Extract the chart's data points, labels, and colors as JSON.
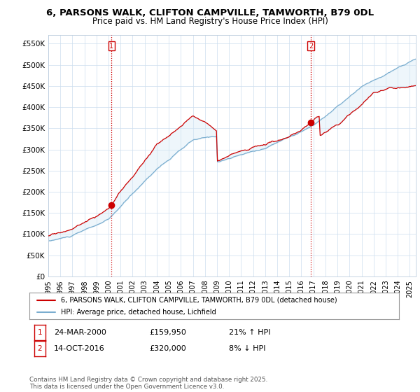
{
  "title_line1": "6, PARSONS WALK, CLIFTON CAMPVILLE, TAMWORTH, B79 0DL",
  "title_line2": "Price paid vs. HM Land Registry's House Price Index (HPI)",
  "ylabel_ticks": [
    "£0",
    "£50K",
    "£100K",
    "£150K",
    "£200K",
    "£250K",
    "£300K",
    "£350K",
    "£400K",
    "£450K",
    "£500K",
    "£550K"
  ],
  "ytick_values": [
    0,
    50000,
    100000,
    150000,
    200000,
    250000,
    300000,
    350000,
    400000,
    450000,
    500000,
    550000
  ],
  "ylim": [
    0,
    570000
  ],
  "xlim_start": 1995.0,
  "xlim_end": 2025.5,
  "sale1_x": 2000.23,
  "sale1_y": 159950,
  "sale2_x": 2016.79,
  "sale2_y": 320000,
  "red_color": "#cc0000",
  "blue_color": "#7aadcf",
  "fill_color": "#d0e8f5",
  "legend_label_red": "6, PARSONS WALK, CLIFTON CAMPVILLE, TAMWORTH, B79 0DL (detached house)",
  "legend_label_blue": "HPI: Average price, detached house, Lichfield",
  "footer": "Contains HM Land Registry data © Crown copyright and database right 2025.\nThis data is licensed under the Open Government Licence v3.0.",
  "background_color": "#ffffff",
  "grid_color": "#ccddee"
}
